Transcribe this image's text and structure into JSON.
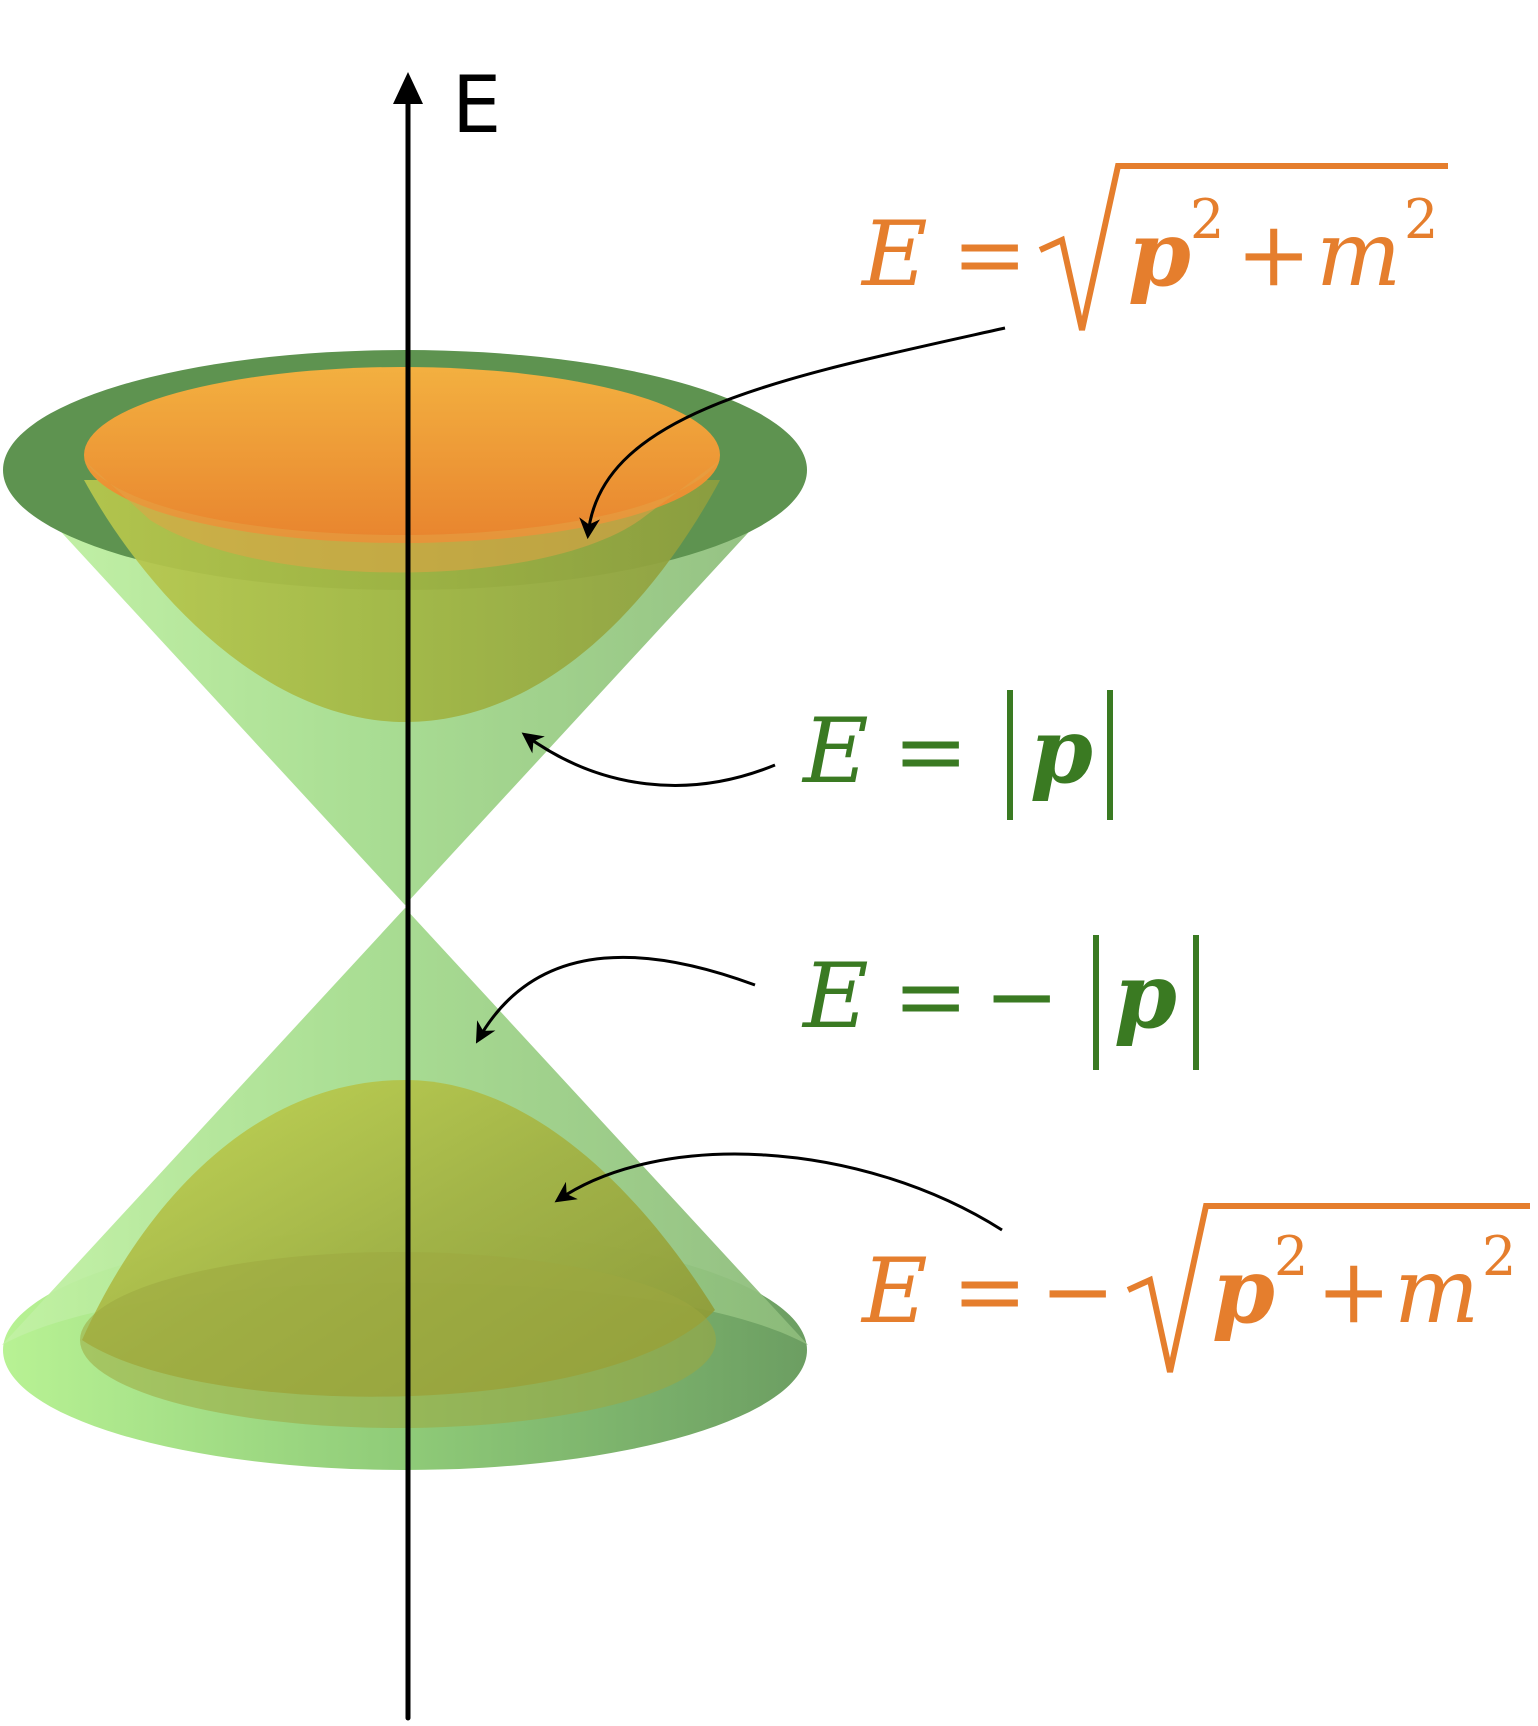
{
  "axis": {
    "label": "E"
  },
  "equations": {
    "upper_hyperbola": {
      "lhs": "E",
      "eq": "=",
      "sign": "",
      "var": "p",
      "sq": "2",
      "plus": "+",
      "mass": "m"
    },
    "upper_cone": {
      "lhs": "E",
      "eq": "=",
      "sign": "",
      "var": "p"
    },
    "lower_cone": {
      "lhs": "E",
      "eq": "=",
      "sign": "−",
      "var": "p"
    },
    "lower_hyperbola": {
      "lhs": "E",
      "eq": "=",
      "sign": "−",
      "var": "p",
      "sq": "2",
      "plus": "+",
      "mass": "m"
    }
  },
  "colors": {
    "orange": "#E57E2D",
    "green_text": "#3A7A22",
    "cone_green": "#9FDC84",
    "dark_rim": "#5E9350",
    "hyperboloid": "#8FA830",
    "axis": "#000000"
  }
}
